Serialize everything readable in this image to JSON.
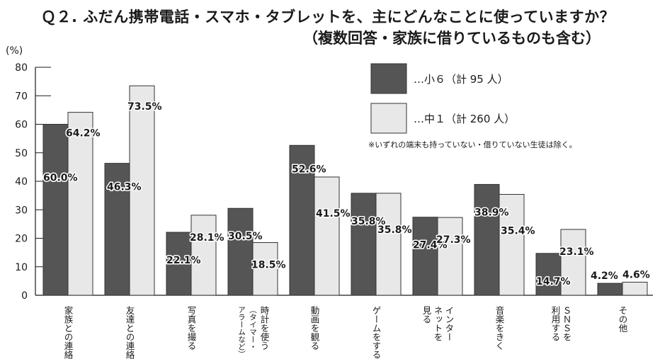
{
  "title": "Ｑ２. ふだん携帯電話・スマホ・タブレットを、主にどんなことに使っていますか？",
  "subtitle": "（複数回答・家族に借りているものも含む）",
  "chart_data": {
    "type": "bar",
    "ylabel": "(%)",
    "ylim": [
      0,
      80
    ],
    "yticks": [
      0,
      10,
      20,
      30,
      40,
      50,
      60,
      70,
      80
    ],
    "grid": false,
    "legend_position": "top-right",
    "categories": [
      [
        "家族との連絡"
      ],
      [
        "友達との連絡"
      ],
      [
        "写真を撮る"
      ],
      [
        "時計を使う",
        "（タイマー・",
        "アラームなど）"
      ],
      [
        "動画を観る"
      ],
      [
        "ゲームをする"
      ],
      [
        "インター",
        "ネットを",
        "見る"
      ],
      [
        "音楽をきく"
      ],
      [
        "ＳＮＳを",
        "利用する"
      ],
      [
        "その他"
      ]
    ],
    "series": [
      {
        "name": "…小６（計 95 人）",
        "color": "#555555",
        "values": [
          60.0,
          46.3,
          22.1,
          30.5,
          52.6,
          35.8,
          27.4,
          38.9,
          14.7,
          4.2
        ],
        "labels": [
          "60.0%",
          "46.3%",
          "22.1%",
          "30.5%",
          "52.6%",
          "35.8%",
          "27.4%",
          "38.9%",
          "14.7%",
          "4.2%"
        ]
      },
      {
        "name": "…中１（計 260 人）",
        "color": "#e8e8e8",
        "values": [
          64.2,
          73.5,
          28.1,
          18.5,
          41.5,
          35.8,
          27.3,
          35.4,
          23.1,
          4.6
        ],
        "labels": [
          "64.2%",
          "73.5%",
          "28.1%",
          "18.5%",
          "41.5%",
          "35.8%",
          "27.3%",
          "35.4%",
          "23.1%",
          "4.6%"
        ]
      }
    ],
    "note": "※いずれの端末も持っていない・借りていない生徒は除く。"
  }
}
